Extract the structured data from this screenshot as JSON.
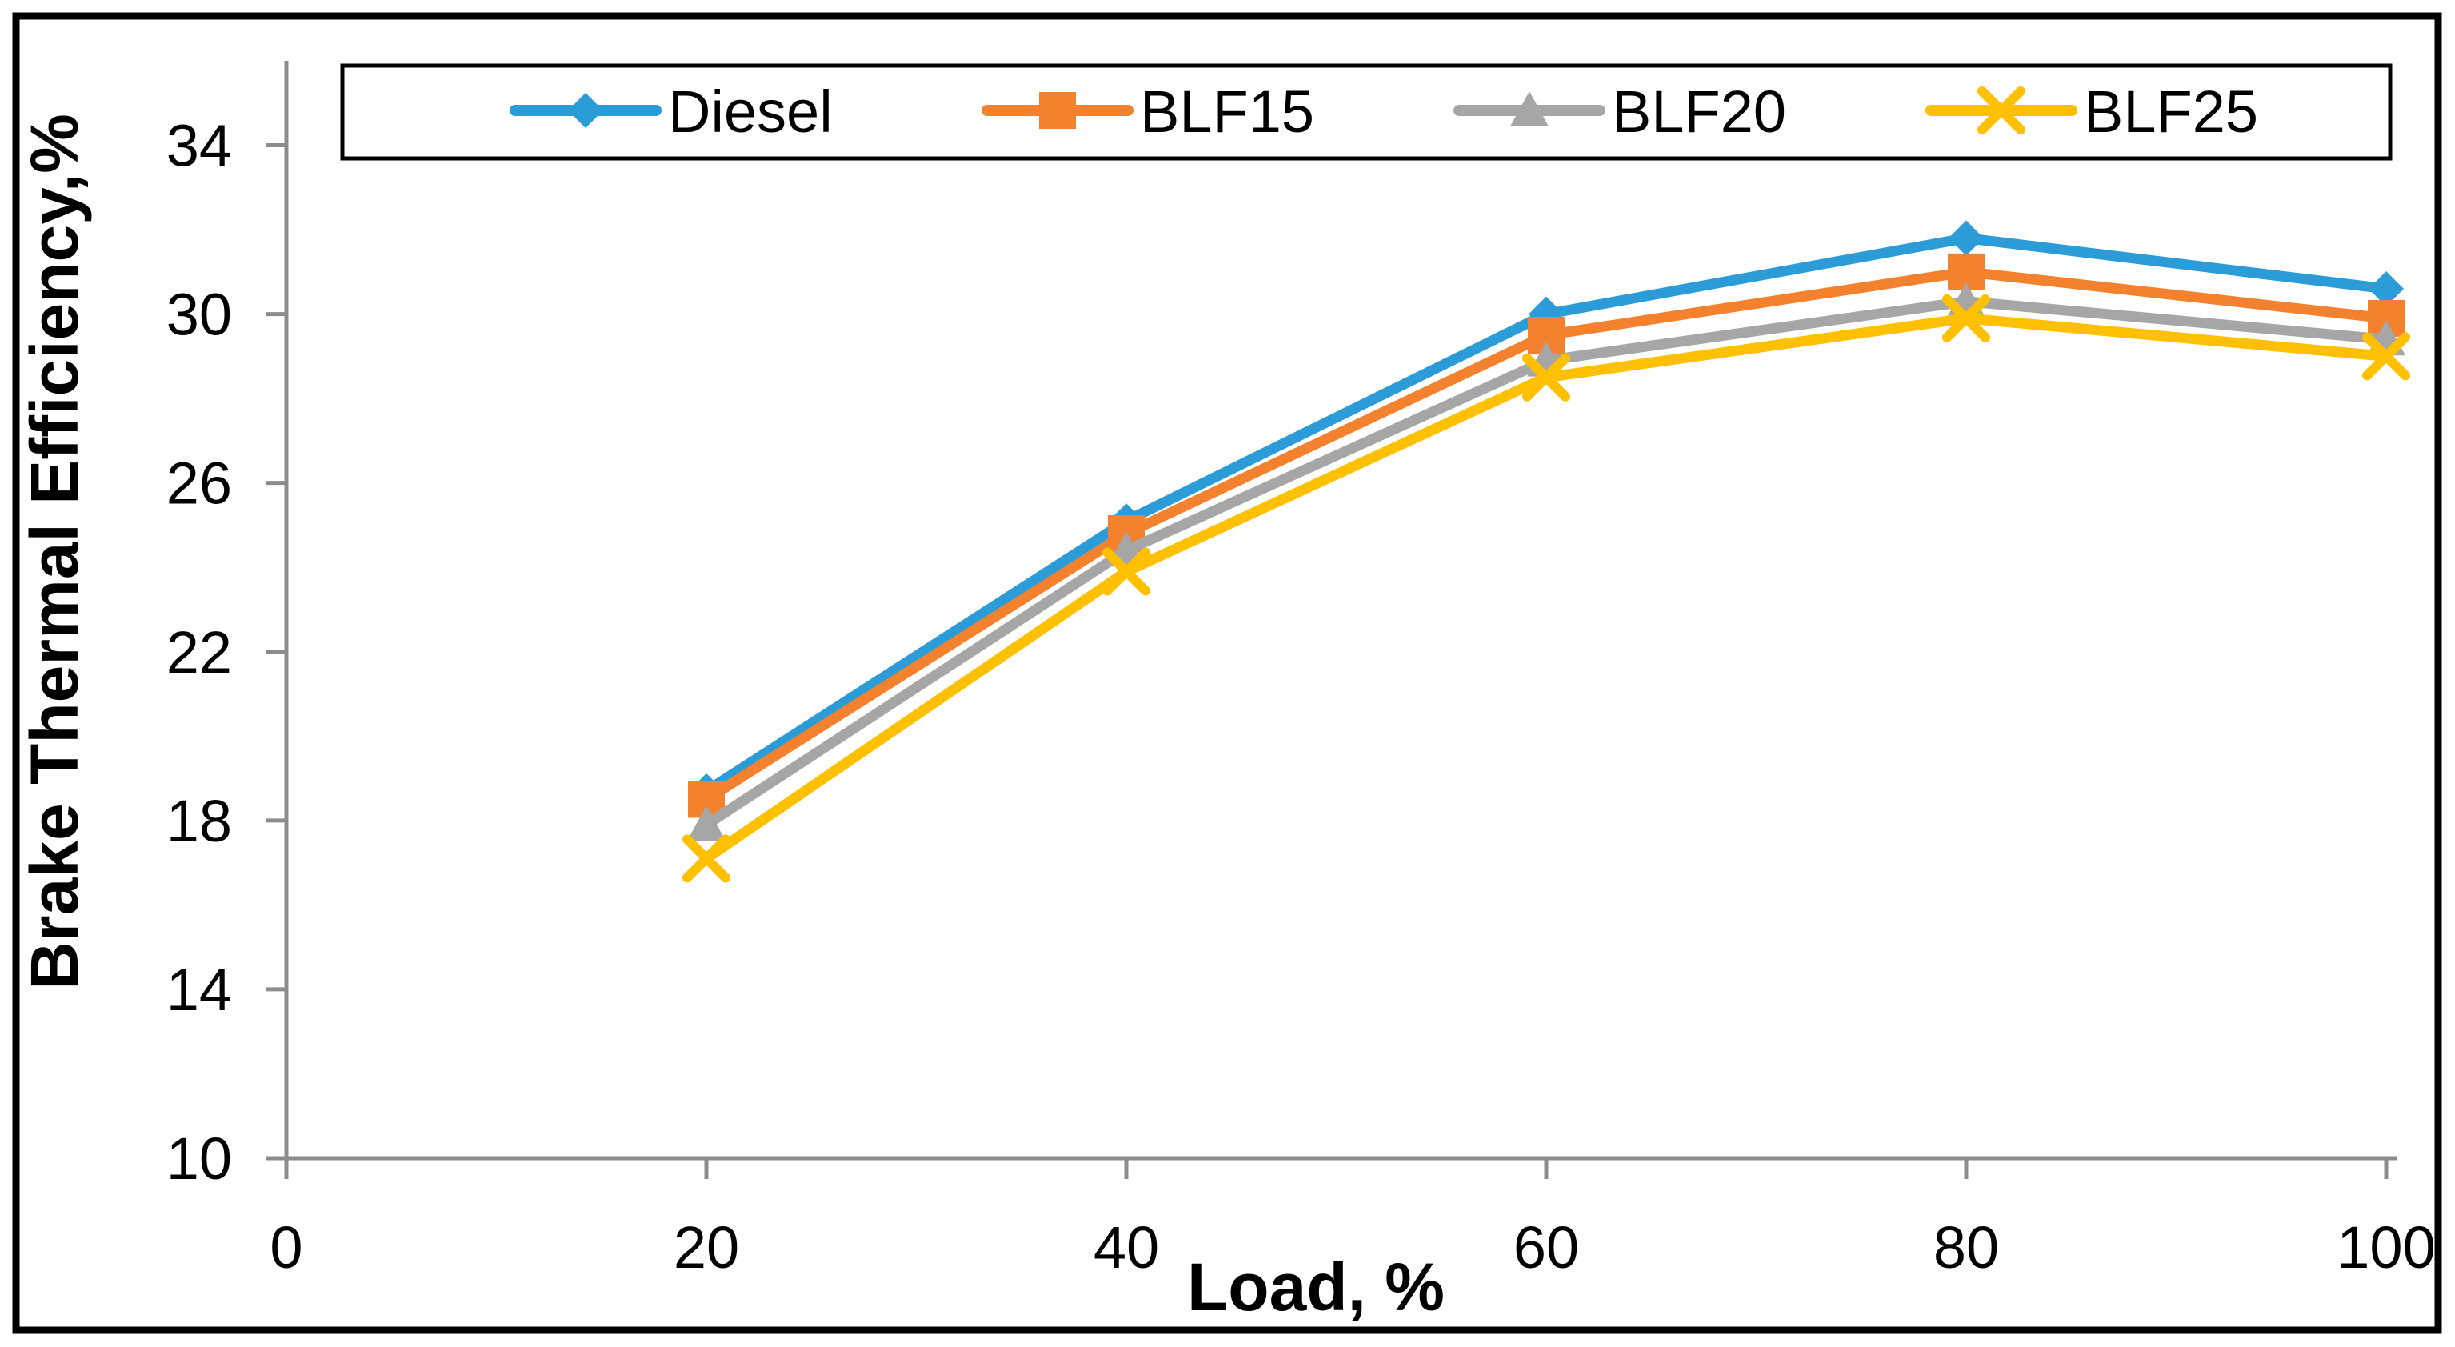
{
  "chart_data": {
    "type": "line",
    "title": "",
    "xlabel": "Load, %",
    "ylabel": "Brake Thermal Efficiency,%",
    "x": [
      20,
      40,
      60,
      80,
      100
    ],
    "xticks": [
      "0",
      "20",
      "40",
      "60",
      "80",
      "100"
    ],
    "yticks": [
      "10",
      "14",
      "18",
      "22",
      "26",
      "30",
      "34"
    ],
    "xlim": [
      0,
      100
    ],
    "ylim": [
      10,
      36
    ],
    "grid": false,
    "legend_position": "top",
    "series": [
      {
        "name": "Diesel",
        "marker": "diamond",
        "color": "#2B9CD8",
        "values": [
          18.7,
          25.1,
          30.0,
          31.8,
          30.6
        ]
      },
      {
        "name": "BLF15",
        "marker": "square",
        "color": "#F4812D",
        "values": [
          18.5,
          24.8,
          29.5,
          31.0,
          29.9
        ]
      },
      {
        "name": "BLF20",
        "marker": "triangle",
        "color": "#A6A6A6",
        "values": [
          17.9,
          24.4,
          28.9,
          30.3,
          29.4
        ]
      },
      {
        "name": "BLF25",
        "marker": "x",
        "color": "#FFC000",
        "values": [
          17.1,
          23.9,
          28.5,
          29.9,
          29.0
        ]
      }
    ],
    "colors": {
      "axis": "#8C8C8C",
      "text": "#000000",
      "figure_border": "#000000",
      "legend_border": "#000000",
      "background": "#FFFFFF"
    }
  }
}
